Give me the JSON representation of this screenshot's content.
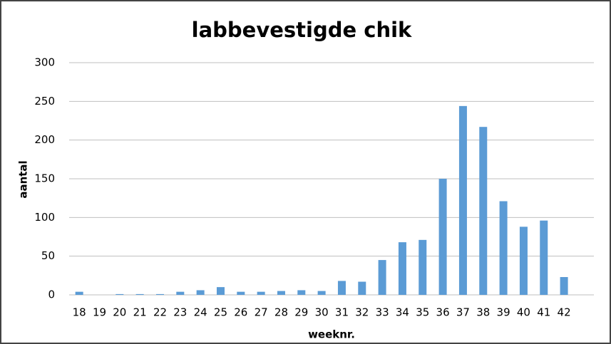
{
  "chart_data": {
    "type": "bar",
    "title": "labbevestigde chik",
    "x_label": "weeknr.",
    "y_label": "aantal",
    "categories": [
      "18",
      "19",
      "20",
      "21",
      "22",
      "23",
      "24",
      "25",
      "26",
      "27",
      "28",
      "29",
      "30",
      "31",
      "32",
      "33",
      "34",
      "35",
      "36",
      "37",
      "38",
      "39",
      "40",
      "41",
      "42"
    ],
    "values": [
      4,
      0,
      1,
      1,
      1,
      4,
      6,
      10,
      4,
      4,
      5,
      6,
      5,
      18,
      17,
      45,
      68,
      71,
      150,
      244,
      217,
      121,
      88,
      96,
      23
    ],
    "color": "#5b9bd5",
    "ylim": [
      0,
      300
    ],
    "yticks": [
      0,
      50,
      100,
      150,
      200,
      250,
      300
    ],
    "grid": true
  }
}
